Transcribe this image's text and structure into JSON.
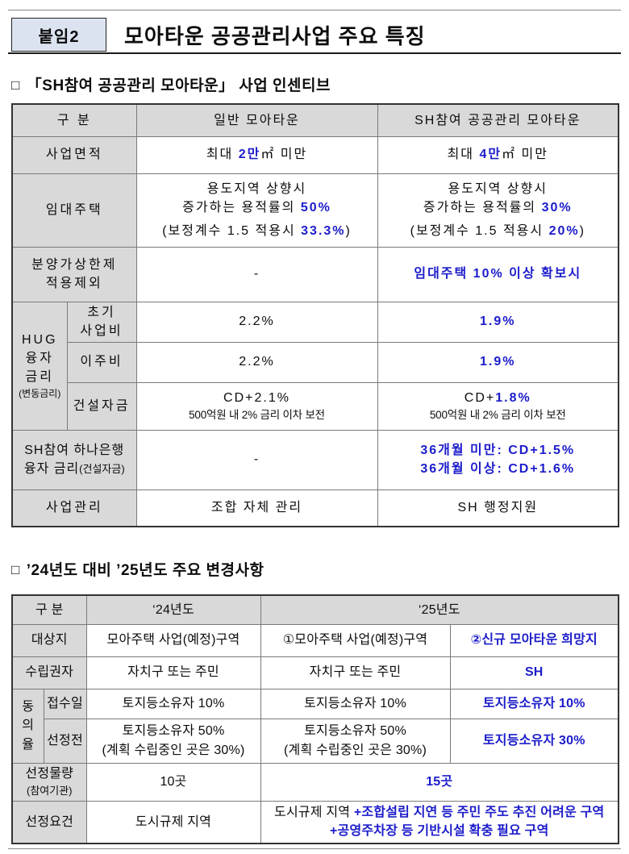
{
  "page": {
    "header": {
      "badge": "붙임2",
      "title": "모아타운 공공관리사업 주요 특징"
    },
    "section1": {
      "bullet": "□",
      "title": "「SH참여 공공관리 모아타운」 사업 인센티브"
    },
    "section2": {
      "bullet": "□",
      "title": "’24년도 대비 ’25년도 주요 변경사항"
    }
  },
  "colors": {
    "accent_blue": "#1c1ccb",
    "highlight_border": "#1c1ccb",
    "label_cell_gray": "#d9d9d9",
    "badge_background": "#dce3f0"
  },
  "table1": {
    "headers": {
      "col1": "구  분",
      "col2": "일반 모아타운",
      "col3": "SH참여 공공관리 모아타운"
    },
    "rows": {
      "area": {
        "label": "사업면적",
        "general": [
          {
            "t": "최대 "
          },
          {
            "t": "2만",
            "b": true
          },
          {
            "t": "㎡ 미만"
          }
        ],
        "sh": [
          {
            "t": "최대 "
          },
          {
            "t": "4만",
            "b": true
          },
          {
            "t": "㎡ 미만"
          }
        ]
      },
      "rental": {
        "label": "임대주택",
        "general_line1": "용도지역 상향시",
        "general_line2": [
          {
            "t": "증가하는 용적률의 "
          },
          {
            "t": "50%",
            "b": true
          }
        ],
        "general_line3": [
          {
            "t": "(보정계수 1.5 적용시 "
          },
          {
            "t": "33.3%",
            "b": true
          },
          {
            "t": ")"
          }
        ],
        "sh_line1": "용도지역 상향시",
        "sh_line2": [
          {
            "t": "증가하는 용적률의 "
          },
          {
            "t": "30%",
            "b": true
          }
        ],
        "sh_line3": [
          {
            "t": "(보정계수 1.5 적용시 "
          },
          {
            "t": "20%",
            "b": true
          },
          {
            "t": ")"
          }
        ]
      },
      "price_cap": {
        "label_line1": "분양가상한제",
        "label_line2": "적용제외",
        "general": "-",
        "sh": "임대주택 10% 이상 확보시"
      },
      "hug": {
        "label_line1": "HUG",
        "label_line2": "융자",
        "label_line3": "금리",
        "label_line4": "(변동금리)",
        "initial": {
          "label_line1": "초기",
          "label_line2": "사업비",
          "general": "2.2%",
          "sh": "1.9%"
        },
        "relocation": {
          "label": "이주비",
          "general": "2.2%",
          "sh": "1.9%"
        },
        "construction": {
          "label": "건설자금",
          "general_line1": "CD+2.1%",
          "general_line2": "500억원 내 2% 금리 이차 보전",
          "sh_line1": [
            {
              "t": "CD+"
            },
            {
              "t": "1.8%",
              "b": true
            }
          ],
          "sh_line2": "500억원 내 2% 금리 이차 보전"
        }
      },
      "hana": {
        "label_line1": "SH참여 하나은행",
        "label_line2": "융자 금리",
        "label_line2_small": "(건설자금)",
        "general": "-",
        "sh_line1": "36개월 미만: CD+1.5%",
        "sh_line2": "36개월 이상: CD+1.6%"
      },
      "management": {
        "label": "사업관리",
        "general": "조합 자체 관리",
        "sh": "SH 행정지원"
      }
    }
  },
  "table2": {
    "headers": {
      "col1": "구  분",
      "y24": "‘24년도",
      "y25": "‘25년도"
    },
    "rows": {
      "target": {
        "label": "대상지",
        "y24": "모아주택 사업(예정)구역",
        "y25_a": "①모아주택 사업(예정)구역",
        "y25_b": "②신규 모아타운 희망지"
      },
      "authority": {
        "label": "수립권자",
        "y24": "자치구 또는 주민",
        "y25_a": "자치구 또는 주민",
        "y25_b": "SH"
      },
      "consent": {
        "label_char1": "동",
        "label_char2": "의",
        "label_char3": "율",
        "receipt": {
          "label": "접수일",
          "y24": "토지등소유자 10%",
          "y25_a": "토지등소유자 10%",
          "y25_b": "토지등소유자 10%"
        },
        "preselect": {
          "label": "선정전",
          "y24_line1": "토지등소유자 50%",
          "y24_line2": "(계획 수립중인 곳은 30%)",
          "y25_a_line1": "토지등소유자 50%",
          "y25_a_line2": "(계획 수립중인 곳은 30%)",
          "y25_b": "토지등소유자 30%"
        }
      },
      "quantity": {
        "label_line1": "선정물량",
        "label_line2": "(참여기관)",
        "y24": "10곳",
        "y25": "15곳"
      },
      "criteria": {
        "label": "선정요건",
        "y24": "도시규제 지역",
        "y25_line1": [
          {
            "t": "도시규제 지역 "
          },
          {
            "t": "+",
            "b": true
          },
          {
            "t": "조합설립 지연 등 주민 주도 추진 어려운 구역",
            "b": true
          }
        ],
        "y25_line2": [
          {
            "t": "+",
            "b": true
          },
          {
            "t": "공영주차장 등 기반시설 확충 필요 구역",
            "b": true
          }
        ]
      }
    }
  }
}
